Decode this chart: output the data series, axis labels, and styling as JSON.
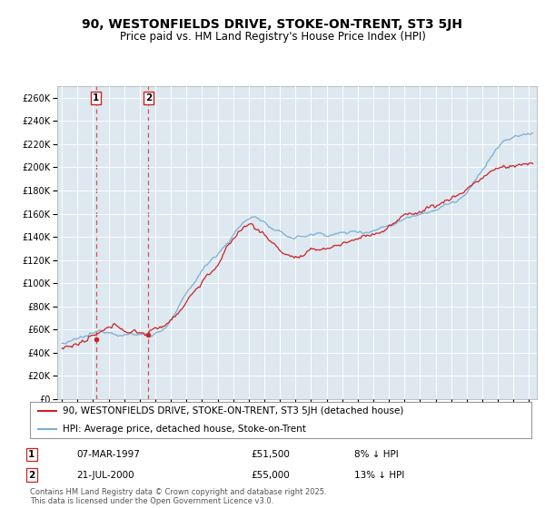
{
  "title": "90, WESTONFIELDS DRIVE, STOKE-ON-TRENT, ST3 5JH",
  "subtitle": "Price paid vs. HM Land Registry's House Price Index (HPI)",
  "ylabel_ticks": [
    "£0",
    "£20K",
    "£40K",
    "£60K",
    "£80K",
    "£100K",
    "£120K",
    "£140K",
    "£160K",
    "£180K",
    "£200K",
    "£220K",
    "£240K",
    "£260K"
  ],
  "ylim": [
    0,
    270000
  ],
  "xlim_start": 1994.7,
  "xlim_end": 2025.5,
  "hpi_color": "#7bafd4",
  "price_color": "#cc2222",
  "background_color": "#dde8f0",
  "grid_color": "#ffffff",
  "legend_label_price": "90, WESTONFIELDS DRIVE, STOKE-ON-TRENT, ST3 5JH (detached house)",
  "legend_label_hpi": "HPI: Average price, detached house, Stoke-on-Trent",
  "sale1_date": 1997.18,
  "sale1_price": 51500,
  "sale2_date": 2000.55,
  "sale2_price": 55000,
  "annotation1_date": "07-MAR-1997",
  "annotation1_price": "£51,500",
  "annotation1_pct": "8% ↓ HPI",
  "annotation2_date": "21-JUL-2000",
  "annotation2_price": "£55,000",
  "annotation2_pct": "13% ↓ HPI",
  "footnote": "Contains HM Land Registry data © Crown copyright and database right 2025.\nThis data is licensed under the Open Government Licence v3.0.",
  "title_fontsize": 10,
  "subtitle_fontsize": 8.5,
  "tick_fontsize": 7,
  "legend_fontsize": 7.5,
  "table_fontsize": 7.5
}
